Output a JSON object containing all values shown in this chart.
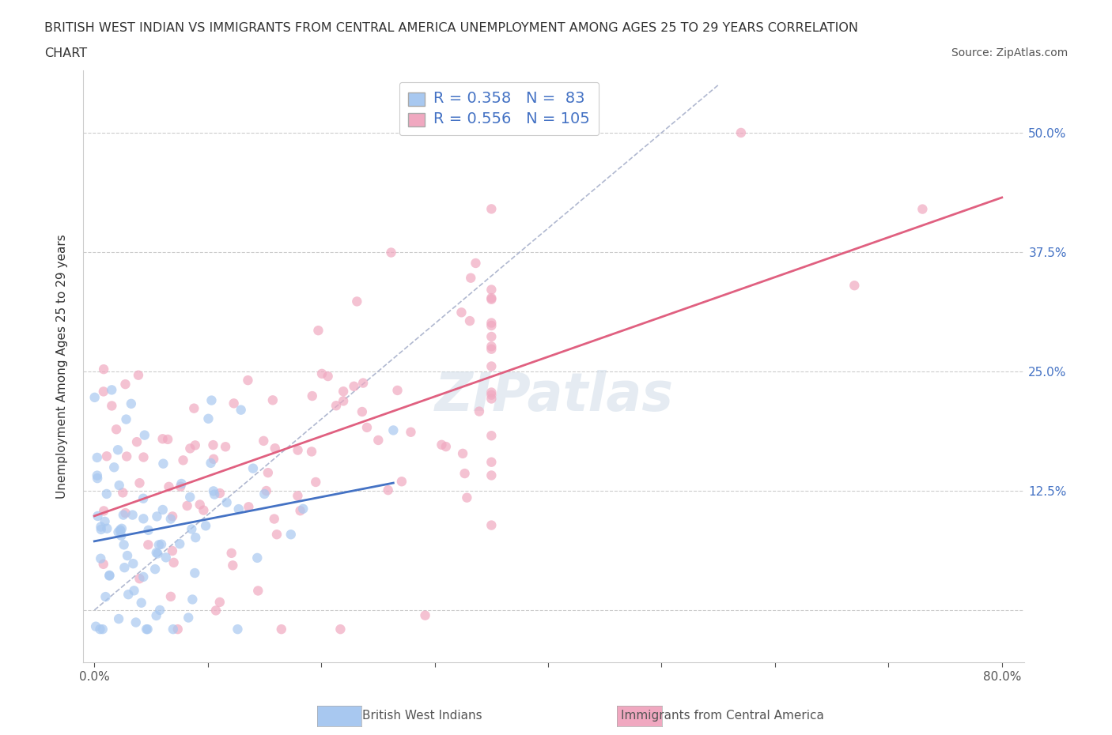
{
  "title_line1": "BRITISH WEST INDIAN VS IMMIGRANTS FROM CENTRAL AMERICA UNEMPLOYMENT AMONG AGES 25 TO 29 YEARS CORRELATION",
  "title_line2": "CHART",
  "source": "Source: ZipAtlas.com",
  "ylabel": "Unemployment Among Ages 25 to 29 years",
  "blue_R": 0.358,
  "blue_N": 83,
  "pink_R": 0.556,
  "pink_N": 105,
  "blue_color": "#a8c8f0",
  "pink_color": "#f0a8c0",
  "blue_line_color": "#4472c4",
  "pink_line_color": "#e06080",
  "diagonal_color": "#b0b8d0",
  "legend_label_blue": "British West Indians",
  "legend_label_pink": "Immigrants from Central America",
  "background_color": "#ffffff"
}
